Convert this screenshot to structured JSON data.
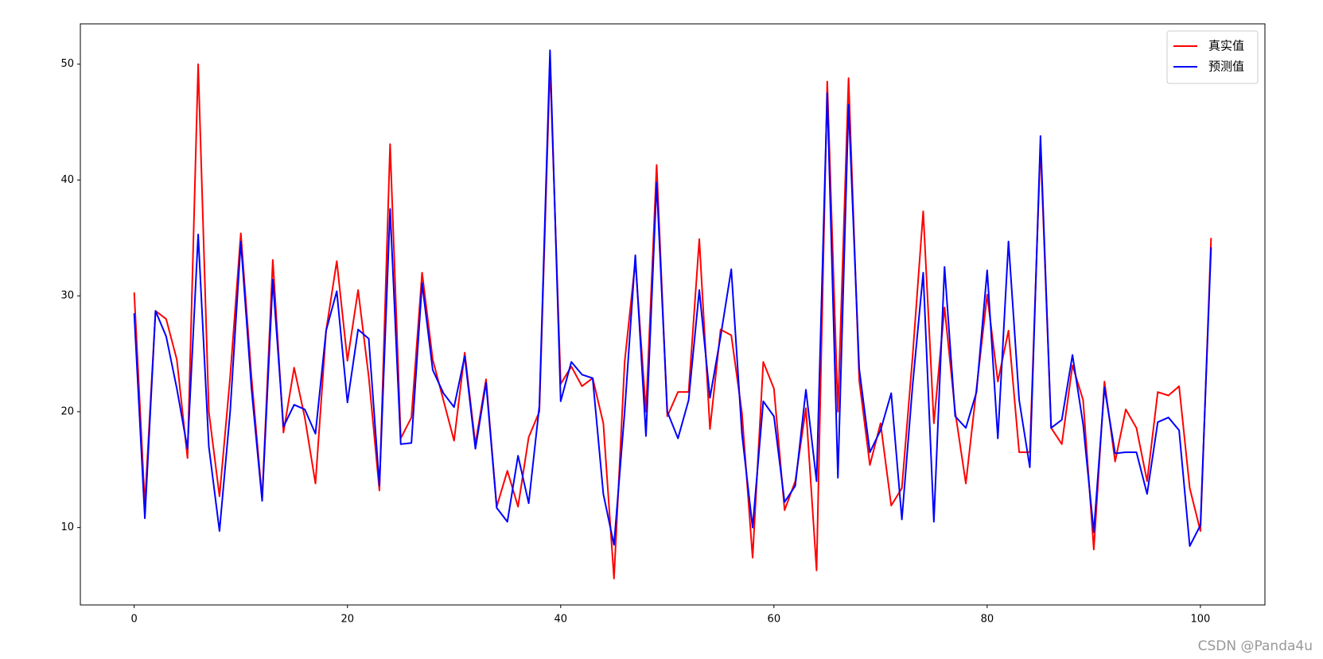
{
  "chart_data": {
    "type": "line",
    "x": [
      0,
      1,
      2,
      3,
      4,
      5,
      6,
      7,
      8,
      9,
      10,
      11,
      12,
      13,
      14,
      15,
      16,
      17,
      18,
      19,
      20,
      21,
      22,
      23,
      24,
      25,
      26,
      27,
      28,
      29,
      30,
      31,
      32,
      33,
      34,
      35,
      36,
      37,
      38,
      39,
      40,
      41,
      42,
      43,
      44,
      45,
      46,
      47,
      48,
      49,
      50,
      51,
      52,
      53,
      54,
      55,
      56,
      57,
      58,
      59,
      60,
      61,
      62,
      63,
      64,
      65,
      66,
      67,
      68,
      69,
      70,
      71,
      72,
      73,
      74,
      75,
      76,
      77,
      78,
      79,
      80,
      81,
      82,
      83,
      84,
      85,
      86,
      87,
      88,
      89,
      90,
      91,
      92,
      93,
      94,
      95,
      96,
      97,
      98,
      99,
      100,
      101
    ],
    "series": [
      {
        "name": "真实值",
        "color": "#ff0000",
        "values": [
          30.3,
          12,
          28.7,
          28.0,
          24.5,
          16.0,
          50.0,
          20.0,
          12.7,
          23,
          35.4,
          23,
          12.5,
          33.1,
          18.2,
          23.8,
          19.5,
          13.8,
          27,
          33.0,
          24.4,
          30.5,
          23,
          13.2,
          43.1,
          17.7,
          19.5,
          32.0,
          24.5,
          21,
          17.5,
          25.1,
          17.2,
          22.8,
          11.8,
          14.9,
          11.8,
          17.8,
          20,
          50,
          22.4,
          23.9,
          22.2,
          22.9,
          19,
          5.6,
          24.3,
          33,
          20,
          41.3,
          19.6,
          21.7,
          21.7,
          34.9,
          18.5,
          27.1,
          26.6,
          19.9,
          7.4,
          24.3,
          22,
          11.5,
          14,
          20.3,
          6.3,
          48.5,
          20,
          48.8,
          22.7,
          15.4,
          19,
          11.9,
          13.4,
          24.7,
          37.3,
          19,
          29,
          20,
          13.8,
          22,
          30.1,
          22.6,
          27,
          16.5,
          16.5,
          43,
          18.6,
          17.2,
          24,
          21,
          8.1,
          22.6,
          15.7,
          20.2,
          18.6,
          14,
          21.7,
          21.4,
          22.2,
          13.4,
          9.7,
          35
        ]
      },
      {
        "name": "预测值",
        "color": "#0000ff",
        "values": [
          28.5,
          10.8,
          28.7,
          26.5,
          22,
          16.8,
          35.3,
          17,
          9.7,
          20,
          34.7,
          22,
          12.3,
          31.4,
          18.7,
          20.6,
          20.2,
          18.1,
          27,
          30.4,
          20.8,
          27.1,
          26.3,
          13.6,
          37.5,
          17.2,
          17.3,
          31.1,
          23.6,
          21.6,
          20.4,
          24.8,
          16.8,
          22.5,
          11.7,
          10.5,
          16.2,
          12.1,
          20.5,
          51.2,
          20.9,
          24.3,
          23.2,
          22.9,
          12.9,
          8.5,
          20,
          33.5,
          17.9,
          39.8,
          20,
          17.7,
          21,
          30.5,
          21.2,
          26.5,
          32.3,
          18.1,
          10,
          20.9,
          19.6,
          12.2,
          13.6,
          21.9,
          14,
          47.5,
          14.3,
          46.5,
          23.7,
          16.5,
          18.4,
          21.6,
          10.7,
          22.2,
          32,
          10.5,
          32.5,
          19.6,
          18.6,
          21.7,
          32.2,
          17.7,
          34.7,
          21,
          15.2,
          43.8,
          18.6,
          19.3,
          24.9,
          18.9,
          9.6,
          22.1,
          16.4,
          16.5,
          16.5,
          12.9,
          19.1,
          19.5,
          18.4,
          8.4,
          10.2,
          34.2
        ]
      }
    ],
    "xlim": [
      -5.05,
      106.05
    ],
    "ylim": [
      3.32,
      53.48
    ],
    "xticks": [
      0,
      20,
      40,
      60,
      80,
      100
    ],
    "yticks": [
      10,
      20,
      30,
      40,
      50
    ],
    "legend": "upper right",
    "watermark": "CSDN @Panda4u"
  }
}
